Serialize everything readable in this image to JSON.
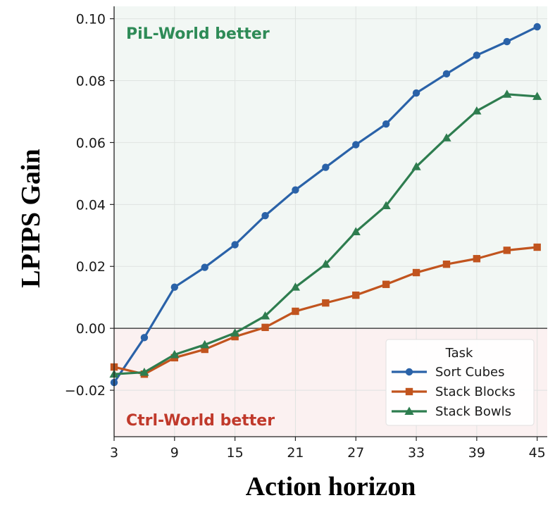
{
  "chart_data": {
    "type": "line",
    "xlabel": "Action horizon",
    "ylabel": "LPIPS Gain",
    "x_ticks": [
      "3",
      "9",
      "15",
      "21",
      "27",
      "33",
      "39",
      "45"
    ],
    "y_ticks": [
      "−0.02",
      "0.00",
      "0.02",
      "0.04",
      "0.06",
      "0.08",
      "0.10"
    ],
    "xlim": [
      3,
      46
    ],
    "ylim": [
      -0.035,
      0.104
    ],
    "grid": true,
    "regions": {
      "upper": {
        "label": "PiL-World better",
        "color": "#2e8b57",
        "fill": "#f2f7f4"
      },
      "lower": {
        "label": "Ctrl-World better",
        "color": "#c0392b",
        "fill": "#fbf1f1"
      }
    },
    "legend": {
      "title": "Task",
      "position": "lower-right"
    },
    "x": [
      3,
      6,
      9,
      12,
      15,
      18,
      21,
      24,
      27,
      30,
      33,
      36,
      39,
      42,
      45
    ],
    "series": [
      {
        "name": "Sort Cubes",
        "color": "#2a62a8",
        "marker": "circle",
        "values": [
          -0.0175,
          -0.003,
          0.0133,
          0.0197,
          0.027,
          0.0364,
          0.0447,
          0.052,
          0.0593,
          0.066,
          0.076,
          0.0822,
          0.0882,
          0.0926,
          0.0974
        ]
      },
      {
        "name": "Stack Blocks",
        "color": "#c1541e",
        "marker": "square",
        "values": [
          -0.0125,
          -0.0148,
          -0.0095,
          -0.0068,
          -0.0027,
          0.0003,
          0.0055,
          0.0082,
          0.0107,
          0.0142,
          0.018,
          0.0207,
          0.0225,
          0.0252,
          0.0262
        ]
      },
      {
        "name": "Stack Bowls",
        "color": "#2e7d4f",
        "marker": "triangle",
        "values": [
          -0.0148,
          -0.0142,
          -0.0085,
          -0.0053,
          -0.0015,
          0.004,
          0.0133,
          0.0207,
          0.0312,
          0.0396,
          0.0522,
          0.0615,
          0.0702,
          0.0756,
          0.0749
        ]
      }
    ]
  }
}
